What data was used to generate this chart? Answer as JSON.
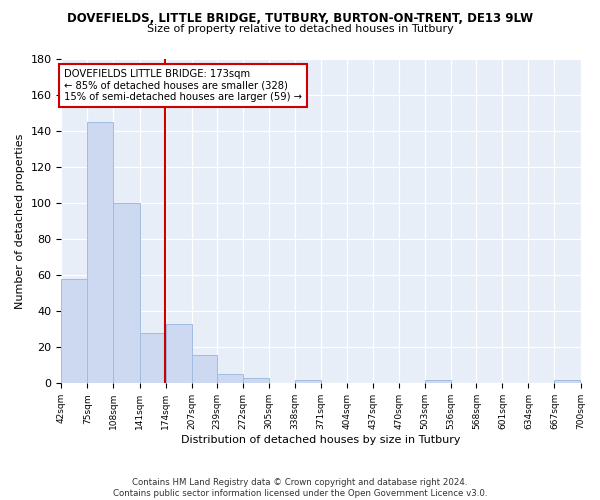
{
  "title1": "DOVEFIELDS, LITTLE BRIDGE, TUTBURY, BURTON-ON-TRENT, DE13 9LW",
  "title2": "Size of property relative to detached houses in Tutbury",
  "xlabel": "Distribution of detached houses by size in Tutbury",
  "ylabel": "Number of detached properties",
  "bar_edges": [
    42,
    75,
    108,
    141,
    174,
    207,
    239,
    272,
    305,
    338,
    371,
    404,
    437,
    470,
    503,
    536,
    568,
    601,
    634,
    667,
    700
  ],
  "bar_heights": [
    58,
    145,
    100,
    28,
    33,
    16,
    5,
    3,
    0,
    2,
    0,
    0,
    0,
    0,
    2,
    0,
    0,
    0,
    0,
    2
  ],
  "bar_color": "#cdd9f0",
  "bar_edge_color": "#a0bce0",
  "vline_x": 173,
  "vline_color": "#cc0000",
  "annotation_lines": [
    "DOVEFIELDS LITTLE BRIDGE: 173sqm",
    "← 85% of detached houses are smaller (328)",
    "15% of semi-detached houses are larger (59) →"
  ],
  "annotation_box_color": "white",
  "annotation_box_edge": "#cc0000",
  "ylim": [
    0,
    180
  ],
  "yticks": [
    0,
    20,
    40,
    60,
    80,
    100,
    120,
    140,
    160,
    180
  ],
  "tick_labels": [
    "42sqm",
    "75sqm",
    "108sqm",
    "141sqm",
    "174sqm",
    "207sqm",
    "239sqm",
    "272sqm",
    "305sqm",
    "338sqm",
    "371sqm",
    "404sqm",
    "437sqm",
    "470sqm",
    "503sqm",
    "536sqm",
    "568sqm",
    "601sqm",
    "634sqm",
    "667sqm",
    "700sqm"
  ],
  "footer": "Contains HM Land Registry data © Crown copyright and database right 2024.\nContains public sector information licensed under the Open Government Licence v3.0.",
  "bg_color": "#ffffff",
  "plot_bg_color": "#e8eef8"
}
